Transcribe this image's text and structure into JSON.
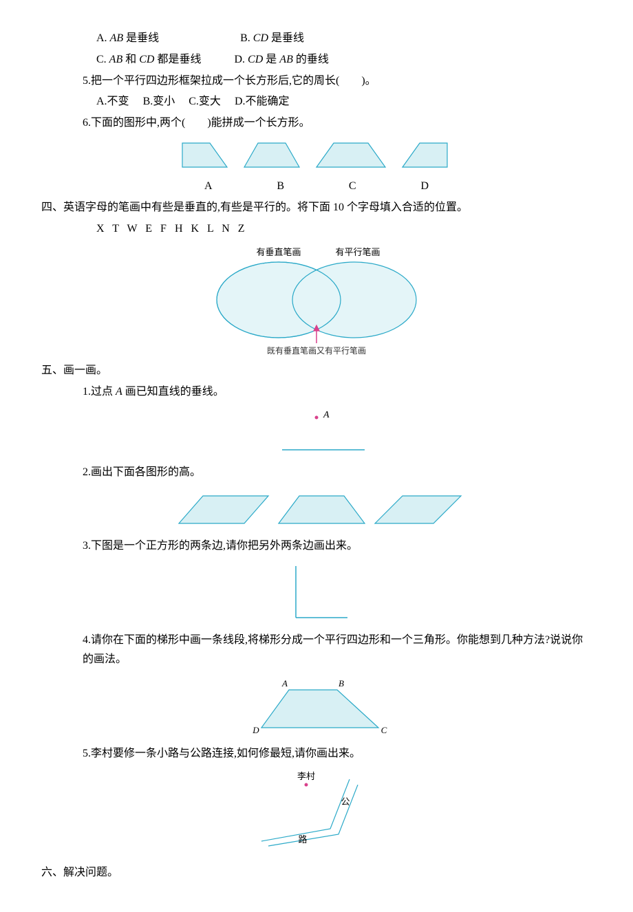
{
  "q4_opts": {
    "a": "A. ",
    "a_txt": " 是垂线",
    "ab": "AB",
    "b": "B. ",
    "b_txt": " 是垂线",
    "cd": "CD",
    "c": "C. ",
    "c_txt": " 都是垂线",
    "and": " 和 ",
    "d": "D. ",
    "d_txt1": " 是 ",
    "d_txt2": " 的垂线"
  },
  "q5": {
    "stem": "5.把一个平行四边形框架拉成一个长方形后,它的周长(　　)。",
    "a": "A.不变",
    "b": "B.变小",
    "c": "C.变大",
    "d": "D.不能确定"
  },
  "q6": {
    "stem": "6.下面的图形中,两个(　　)能拼成一个长方形。",
    "labels": {
      "a": "A",
      "b": "B",
      "c": "C",
      "d": "D"
    },
    "fill": "#d8f0f4",
    "stroke": "#2aa9c8"
  },
  "sec4": {
    "title": "四、英语字母的笔画中有些是垂直的,有些是平行的。将下面 10 个字母填入合适的位置。",
    "letters": "X T W E F H K L N Z",
    "venn": {
      "left_label": "有垂直笔画",
      "right_label": "有平行笔画",
      "bottom_label": "既有垂直笔画又有平行笔画",
      "fill": "#e4f5f8",
      "stroke": "#2aa9c8",
      "arrow": "#d9418c"
    }
  },
  "sec5": {
    "title": "五、画一画。",
    "q1": "1.过点 ",
    "q1_A": "A",
    "q1_tail": " 画已知直线的垂线。",
    "point_color": "#d9418c",
    "line_color": "#2aa9c8",
    "q2": "2.画出下面各图形的高。",
    "shapes_fill": "#d8f0f4",
    "shapes_stroke": "#2aa9c8",
    "q3": "3.下图是一个正方形的两条边,请你把另外两条边画出来。",
    "q4": "4.请你在下面的梯形中画一条线段,将梯形分成一个平行四边形和一个三角形。你能想到几种方法?说说你的画法。",
    "trap_labels": {
      "A": "A",
      "B": "B",
      "C": "C",
      "D": "D"
    },
    "q5": "5.李村要修一条小路与公路连接,如何修最短,请你画出来。",
    "village": "李村",
    "road_g": "公",
    "road_l": "路"
  },
  "sec6": {
    "title": "六、解决问题。"
  }
}
